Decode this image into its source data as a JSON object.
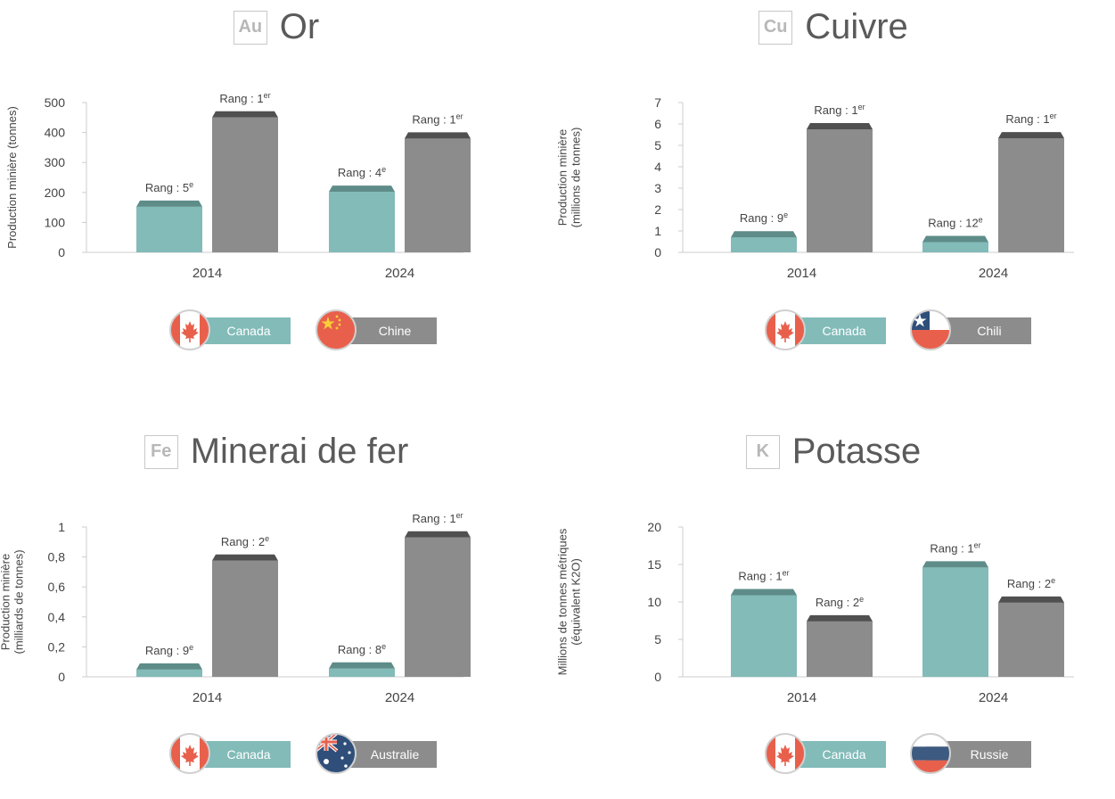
{
  "colors": {
    "canada": "#82bbb8",
    "canada_top": "#5e8c89",
    "other": "#8c8c8c",
    "other_top": "#505050",
    "axis": "#cccccc"
  },
  "panels": [
    {
      "symbol": "Au",
      "title": "Or",
      "chart_data": {
        "type": "bar",
        "categories": [
          "2014",
          "2024"
        ],
        "series": [
          {
            "name": "Canada",
            "values": [
              152,
              202
            ],
            "rank_labels": [
              "Rang : 5e",
              "Rang : 4e"
            ]
          },
          {
            "name": "Chine",
            "values": [
              450,
              380
            ],
            "rank_labels": [
              "Rang : 1er",
              "Rang : 1er"
            ]
          }
        ],
        "ylabel": [
          "Production minière (tonnes)"
        ],
        "ylim": [
          0,
          500
        ],
        "ticks": [
          "0",
          "100",
          "200",
          "300",
          "400",
          "500"
        ]
      },
      "legend": [
        {
          "label": "Canada",
          "flag": "canada-flag-icon"
        },
        {
          "label": "Chine",
          "flag": "china-flag-icon"
        }
      ]
    },
    {
      "symbol": "Cu",
      "title": "Cuivre",
      "chart_data": {
        "type": "bar",
        "categories": [
          "2014",
          "2024"
        ],
        "series": [
          {
            "name": "Canada",
            "values": [
              0.7,
              0.48
            ],
            "rank_labels": [
              "Rang : 9e",
              "Rang : 12e"
            ]
          },
          {
            "name": "Chili",
            "values": [
              5.75,
              5.33
            ],
            "rank_labels": [
              "Rang : 1er",
              "Rang : 1er"
            ]
          }
        ],
        "ylabel": [
          "Production minière",
          "(millions de tonnes)"
        ],
        "ylim": [
          0,
          7
        ],
        "ticks": [
          "0",
          "1",
          "2",
          "3",
          "4",
          "5",
          "6",
          "7"
        ]
      },
      "legend": [
        {
          "label": "Canada",
          "flag": "canada-flag-icon"
        },
        {
          "label": "Chili",
          "flag": "chile-flag-icon"
        }
      ]
    },
    {
      "symbol": "Fe",
      "title": "Minerai de fer",
      "chart_data": {
        "type": "bar",
        "categories": [
          "2014",
          "2024"
        ],
        "series": [
          {
            "name": "Canada",
            "values": [
              0.048,
              0.055
            ],
            "rank_labels": [
              "Rang : 9e",
              "Rang : 8e"
            ]
          },
          {
            "name": "Australie",
            "values": [
              0.775,
              0.93
            ],
            "rank_labels": [
              "Rang : 2e",
              "Rang : 1er"
            ]
          }
        ],
        "ylabel": [
          "Production minière",
          "(milliards de tonnes)"
        ],
        "ylim": [
          0,
          1
        ],
        "ticks": [
          "0",
          "0,2",
          "0,4",
          "0,6",
          "0,8",
          "1"
        ]
      },
      "legend": [
        {
          "label": "Canada",
          "flag": "canada-flag-icon"
        },
        {
          "label": "Australie",
          "flag": "australia-flag-icon"
        }
      ]
    },
    {
      "symbol": "K",
      "title": "Potasse",
      "chart_data": {
        "type": "bar",
        "categories": [
          "2014",
          "2024"
        ],
        "series": [
          {
            "name": "Canada",
            "values": [
              10.9,
              14.6
            ],
            "rank_labels": [
              "Rang : 1er",
              "Rang : 1er"
            ]
          },
          {
            "name": "Russie",
            "values": [
              7.4,
              9.9
            ],
            "rank_labels": [
              "Rang : 2e",
              "Rang : 2e"
            ]
          }
        ],
        "ylabel": [
          "Millions de tonnes métriques",
          "(équivalent K2O)"
        ],
        "ylim": [
          0,
          20
        ],
        "ticks": [
          "0",
          "5",
          "10",
          "15",
          "20"
        ]
      },
      "legend": [
        {
          "label": "Canada",
          "flag": "canada-flag-icon"
        },
        {
          "label": "Russie",
          "flag": "russia-flag-icon"
        }
      ]
    }
  ]
}
